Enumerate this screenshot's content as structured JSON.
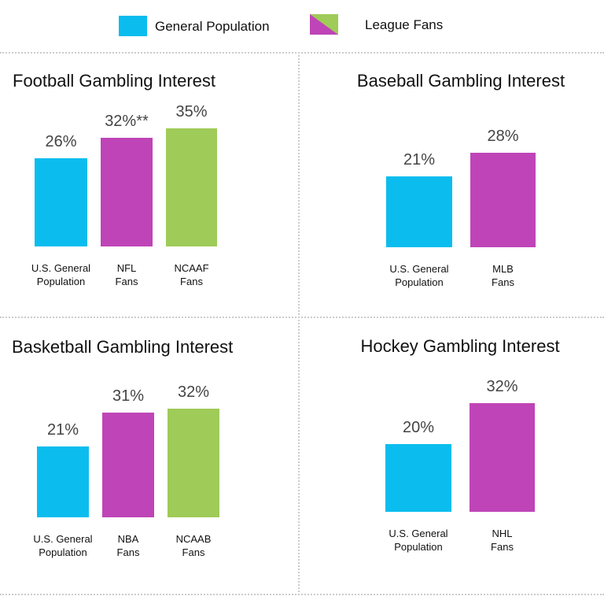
{
  "legend": [
    {
      "label": "General Population",
      "color": "#0bbdee"
    },
    {
      "label": "League Fans",
      "colors": [
        "#bf44b7",
        "#9fcb58"
      ]
    }
  ],
  "chart_data": [
    {
      "type": "bar",
      "title": "Football Gambling Interest",
      "categories": [
        "U.S. General\nPopulation",
        "NFL\nFans",
        "NCAAF\nFans"
      ],
      "values": [
        26,
        32,
        35
      ],
      "value_labels": [
        "26%",
        "32%**",
        "35%"
      ],
      "colors": [
        "#0bbdee",
        "#bf44b7",
        "#9fcb58"
      ],
      "ylim": [
        0,
        40
      ]
    },
    {
      "type": "bar",
      "title": "Baseball Gambling Interest",
      "categories": [
        "U.S. General\nPopulation",
        "MLB\nFans"
      ],
      "values": [
        21,
        28
      ],
      "value_labels": [
        "21%",
        "28%"
      ],
      "colors": [
        "#0bbdee",
        "#bf44b7"
      ],
      "ylim": [
        0,
        40
      ]
    },
    {
      "type": "bar",
      "title": "Basketball Gambling Interest",
      "categories": [
        "U.S. General\nPopulation",
        "NBA\nFans",
        "NCAAB\nFans"
      ],
      "values": [
        21,
        31,
        32
      ],
      "value_labels": [
        "21%",
        "31%",
        "32%"
      ],
      "colors": [
        "#0bbdee",
        "#bf44b7",
        "#9fcb58"
      ],
      "ylim": [
        0,
        40
      ]
    },
    {
      "type": "bar",
      "title": "Hockey Gambling Interest",
      "categories": [
        "U.S. General\nPopulation",
        "NHL\nFans"
      ],
      "values": [
        20,
        32
      ],
      "value_labels": [
        "20%",
        "32%"
      ],
      "colors": [
        "#0bbdee",
        "#bf44b7"
      ],
      "ylim": [
        0,
        40
      ]
    }
  ]
}
